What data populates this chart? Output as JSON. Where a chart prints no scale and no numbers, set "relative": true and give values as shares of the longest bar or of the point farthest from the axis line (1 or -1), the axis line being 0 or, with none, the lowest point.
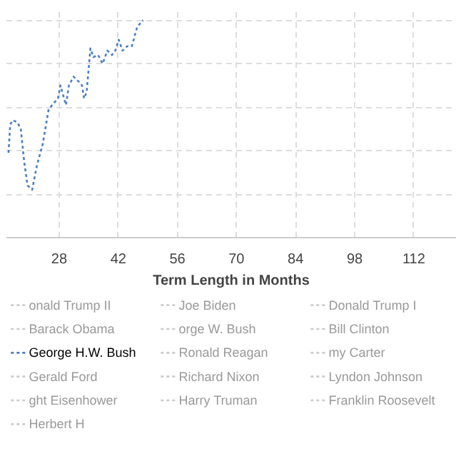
{
  "chart_data": {
    "type": "line",
    "xlabel": "Term Length in Months",
    "relative": true,
    "xlim": [
      15.5,
      122
    ],
    "xticks": [
      28,
      42,
      56,
      70,
      84,
      98,
      112
    ],
    "grid": true,
    "legend": "bottom",
    "line_style": "dashed",
    "series": [
      {
        "name": "onald Trump II",
        "color": "#cccccc"
      },
      {
        "name": "Joe Biden",
        "color": "#cccccc"
      },
      {
        "name": "Donald Trump I",
        "color": "#cccccc"
      },
      {
        "name": "Barack Obama",
        "color": "#cccccc"
      },
      {
        "name": "orge W. Bush",
        "color": "#cccccc"
      },
      {
        "name": "Bill Clinton",
        "color": "#cccccc"
      },
      {
        "name": "George H.W. Bush",
        "color": "#4a7fc1",
        "x": [
          16,
          16.4,
          17,
          18.1,
          18.9,
          19.7,
          20.5,
          21.6,
          22.7,
          24.1,
          25.5,
          26.8,
          27.7,
          28.3,
          29,
          29.6,
          30.3,
          31.4,
          32.5,
          33.4,
          33.9,
          34.5,
          35.4,
          36.1,
          37.2,
          38.3,
          39.4,
          40.5,
          41.3,
          42.1,
          43,
          44.1,
          45.2,
          46.5,
          47.9
        ],
        "values": [
          0.39,
          0.52,
          0.54,
          0.53,
          0.5,
          0.35,
          0.24,
          0.22,
          0.33,
          0.43,
          0.59,
          0.62,
          0.64,
          0.7,
          0.65,
          0.61,
          0.7,
          0.74,
          0.72,
          0.7,
          0.64,
          0.67,
          0.87,
          0.83,
          0.84,
          0.8,
          0.86,
          0.84,
          0.86,
          0.91,
          0.86,
          0.88,
          0.88,
          0.97,
          1.0
        ]
      },
      {
        "name": "Ronald Reagan",
        "color": "#cccccc"
      },
      {
        "name": "my Carter",
        "color": "#cccccc"
      },
      {
        "name": "Gerald Ford",
        "color": "#cccccc"
      },
      {
        "name": "Richard Nixon",
        "color": "#cccccc"
      },
      {
        "name": "Lyndon Johnson",
        "color": "#cccccc"
      },
      {
        "name": "ght Eisenhower",
        "color": "#cccccc"
      },
      {
        "name": "Harry Truman",
        "color": "#cccccc"
      },
      {
        "name": "Franklin Roosevelt",
        "color": "#cccccc"
      },
      {
        "name": "Herbert H",
        "color": "#cccccc"
      }
    ]
  }
}
